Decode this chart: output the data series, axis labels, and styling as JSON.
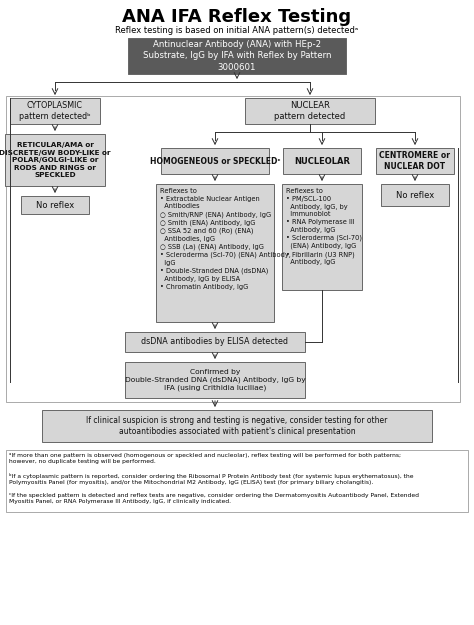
{
  "title": "ANA IFA Reflex Testing",
  "subtitle": "Reflex testing is based on initial ANA pattern(s) detectedᵃ",
  "bg": "#ffffff",
  "dark_fill": "#5a5a5a",
  "light_fill": "#d6d6d6",
  "border_color": "#666666",
  "white_text": "#ffffff",
  "black_text": "#111111",
  "top_box_text": "Antinuclear Antibody (ANA) with HEp-2\nSubstrate, IgG by IFA with Reflex by Pattern\n3000601",
  "cytoplasmic_text": "CYTOPLASMIC\npattern detectedᵇ",
  "nuclear_text": "NUCLEAR\npattern detected",
  "reticular_text": "RETICULAR/AMA or\nDISCRETE/GW BODY-LIKE or\nPOLAR/GOLGI-LIKE or\nRODS AND RINGS or\nSPECKLED",
  "homog_text": "HOMOGENEOUS or SPECKLEDᶜ",
  "nucleolar_text": "NUCLEOLAR",
  "centromere_text": "CENTROMERE or\nNUCLEAR DOT",
  "no_reflex": "No reflex",
  "reflex_homog": "Reflexes to\n• Extractable Nuclear Antigen\n  Antibodies\n○ Smith/RNP (ENA) Antibody, IgG\n○ Smith (ENA) Antibody, IgG\n○ SSA 52 and 60 (Ro) (ENA)\n  Antibodies, IgG\n○ SSB (La) (ENA) Antibody, IgG\n• Scleroderma (Scl-70) (ENA) Antibody,\n  IgG\n• Double-Stranded DNA (dsDNA)\n  Antibody, IgG by ELISA\n• Chromatin Antibody, IgG",
  "reflex_nucl": "Reflexes to\n• PM/SCL-100\n  Antibody, IgG, by\n  Immunoblot\n• RNA Polymerase III\n  Antibody, IgG\n• Scleroderma (Scl-70)\n  (ENA) Antibody, IgG\n• Fibrillarin (U3 RNP)\n  Antibody, IgG",
  "dsdna_text": "dsDNA antibodies by ELISA detected",
  "confirmed_text": "Confirmed by\nDouble-Stranded DNA (dsDNA) Antibody, IgG by\nIFA (using Crithidia luciliae)",
  "clinical_text": "If clinical suspicion is strong and testing is negative, consider testing for other\nautoantibodies associated with patient's clinical presentation",
  "fn_a": "ᵃIf more than one pattern is observed (homogenous or speckled and nucleolar), reflex testing will be performed for both patterns;\nhowever, no duplicate testing will be performed.",
  "fn_b": "ᵇIf a cytoplasmic pattern is reported, consider ordering the Ribosomal P Protein Antibody test (for systemic lupus erythematosus), the\nPolymyositis Panel (for myositis), and/or the Mitochondrial M2 Antibody, IgG (ELISA) test (for primary biliary cholangitis).",
  "fn_c": "ᶜIf the speckled pattern is detected and reflex tests are negative, consider ordering the Dermatomyositis Autoantibody Panel, Extended\nMyositis Panel, or RNA Polymerase III Antibody, IgG, if clinically indicated."
}
